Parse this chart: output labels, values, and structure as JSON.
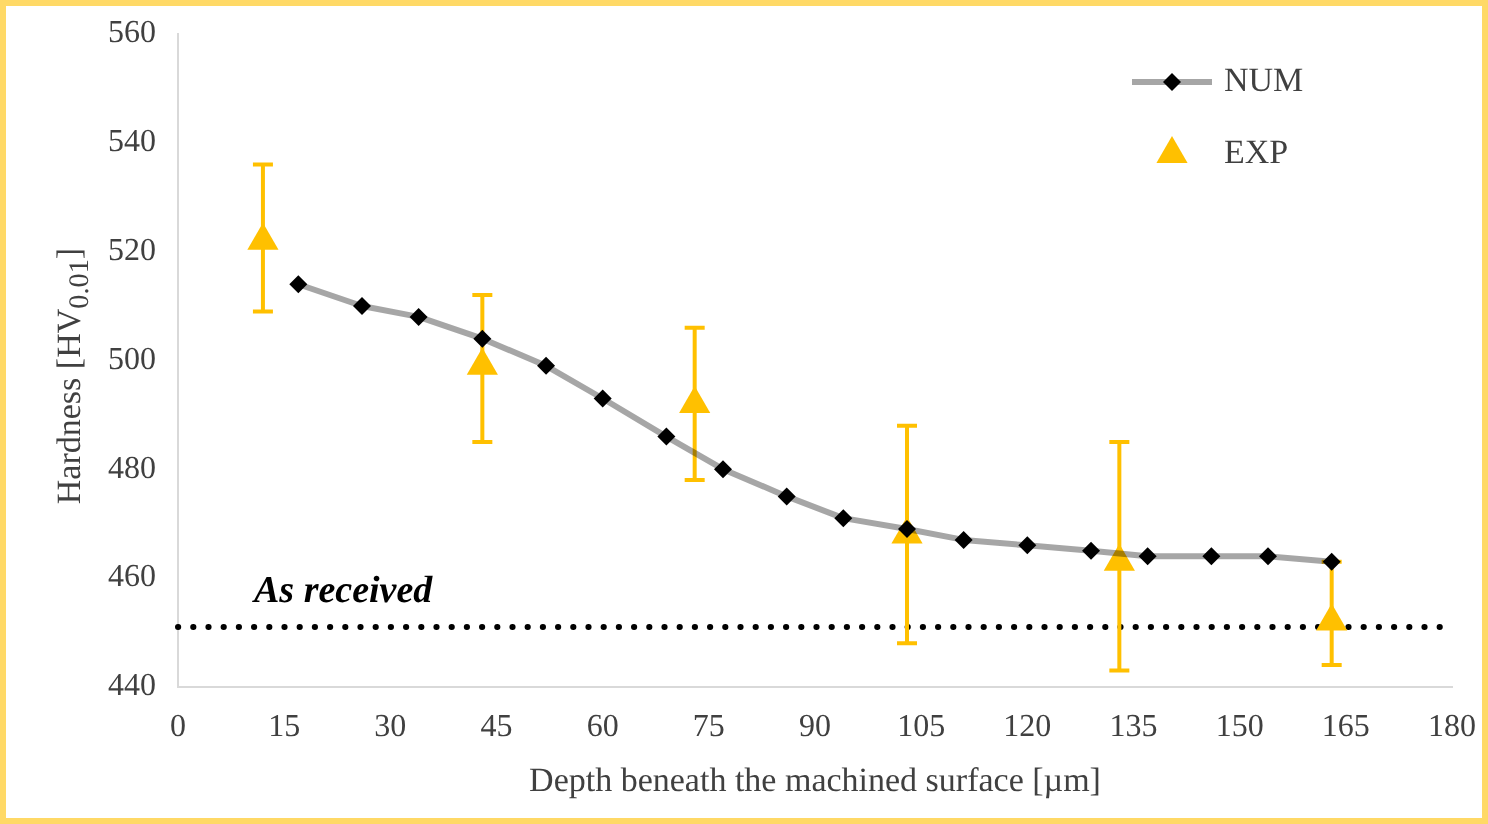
{
  "chart_data": {
    "type": "line",
    "xlabel": "Depth beneath the machined surface [µm]",
    "ylabel": "Hardness [HV$_{0.01}$]",
    "xlim": [
      0,
      180
    ],
    "xticks": [
      0,
      15,
      30,
      45,
      60,
      75,
      90,
      105,
      120,
      135,
      150,
      165,
      180
    ],
    "ylim": [
      440,
      560
    ],
    "yticks": [
      440,
      460,
      480,
      500,
      520,
      540,
      560
    ],
    "grid": false,
    "legend": "top right",
    "series": [
      {
        "name": "NUM",
        "color": "#000000",
        "marker": "diamond",
        "x": [
          17,
          26,
          34,
          43,
          52,
          60,
          69,
          77,
          86,
          94,
          103,
          111,
          120,
          129,
          137,
          146,
          154,
          163
        ],
        "values": [
          514,
          510,
          508,
          504,
          499,
          493,
          486,
          480,
          475,
          471,
          469,
          467,
          466,
          465,
          464,
          464,
          464,
          463
        ]
      },
      {
        "name": "EXP",
        "type": "scatter",
        "color": "#ffc000",
        "marker": "triangle",
        "x": [
          12,
          43,
          73,
          103,
          133,
          163
        ],
        "values": [
          522,
          499,
          492,
          468,
          463,
          452
        ],
        "errors": [
          [
            509,
            536
          ],
          [
            485,
            512
          ],
          [
            478,
            506
          ],
          [
            448,
            488
          ],
          [
            443,
            485
          ],
          [
            444,
            463
          ]
        ]
      }
    ],
    "ref_lines": [
      {
        "axis": "y",
        "value": 451,
        "label": "As received",
        "color": "#000000",
        "line_style": "dotted"
      }
    ]
  }
}
